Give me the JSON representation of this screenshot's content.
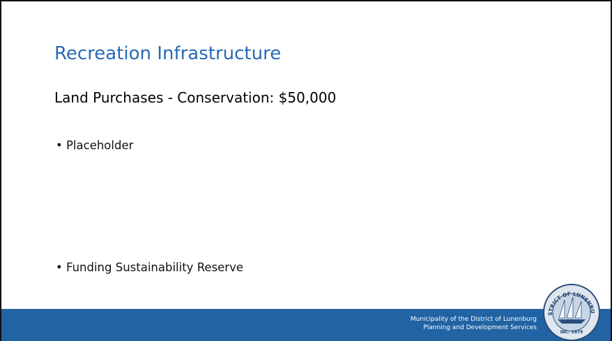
{
  "slide": {
    "title": "Recreation Infrastructure",
    "subtitle": "Land Purchases - Conservation: $50,000",
    "bullets": [
      "Placeholder",
      "Funding Sustainability Reserve"
    ],
    "footer": {
      "lines": [
        "Municipality of the District of Lunenburg",
        "Planning and Development Services"
      ]
    },
    "logo": {
      "ring_text": "DISTRICT OF LUNENBURG",
      "year_text": "INC. 1879"
    }
  }
}
